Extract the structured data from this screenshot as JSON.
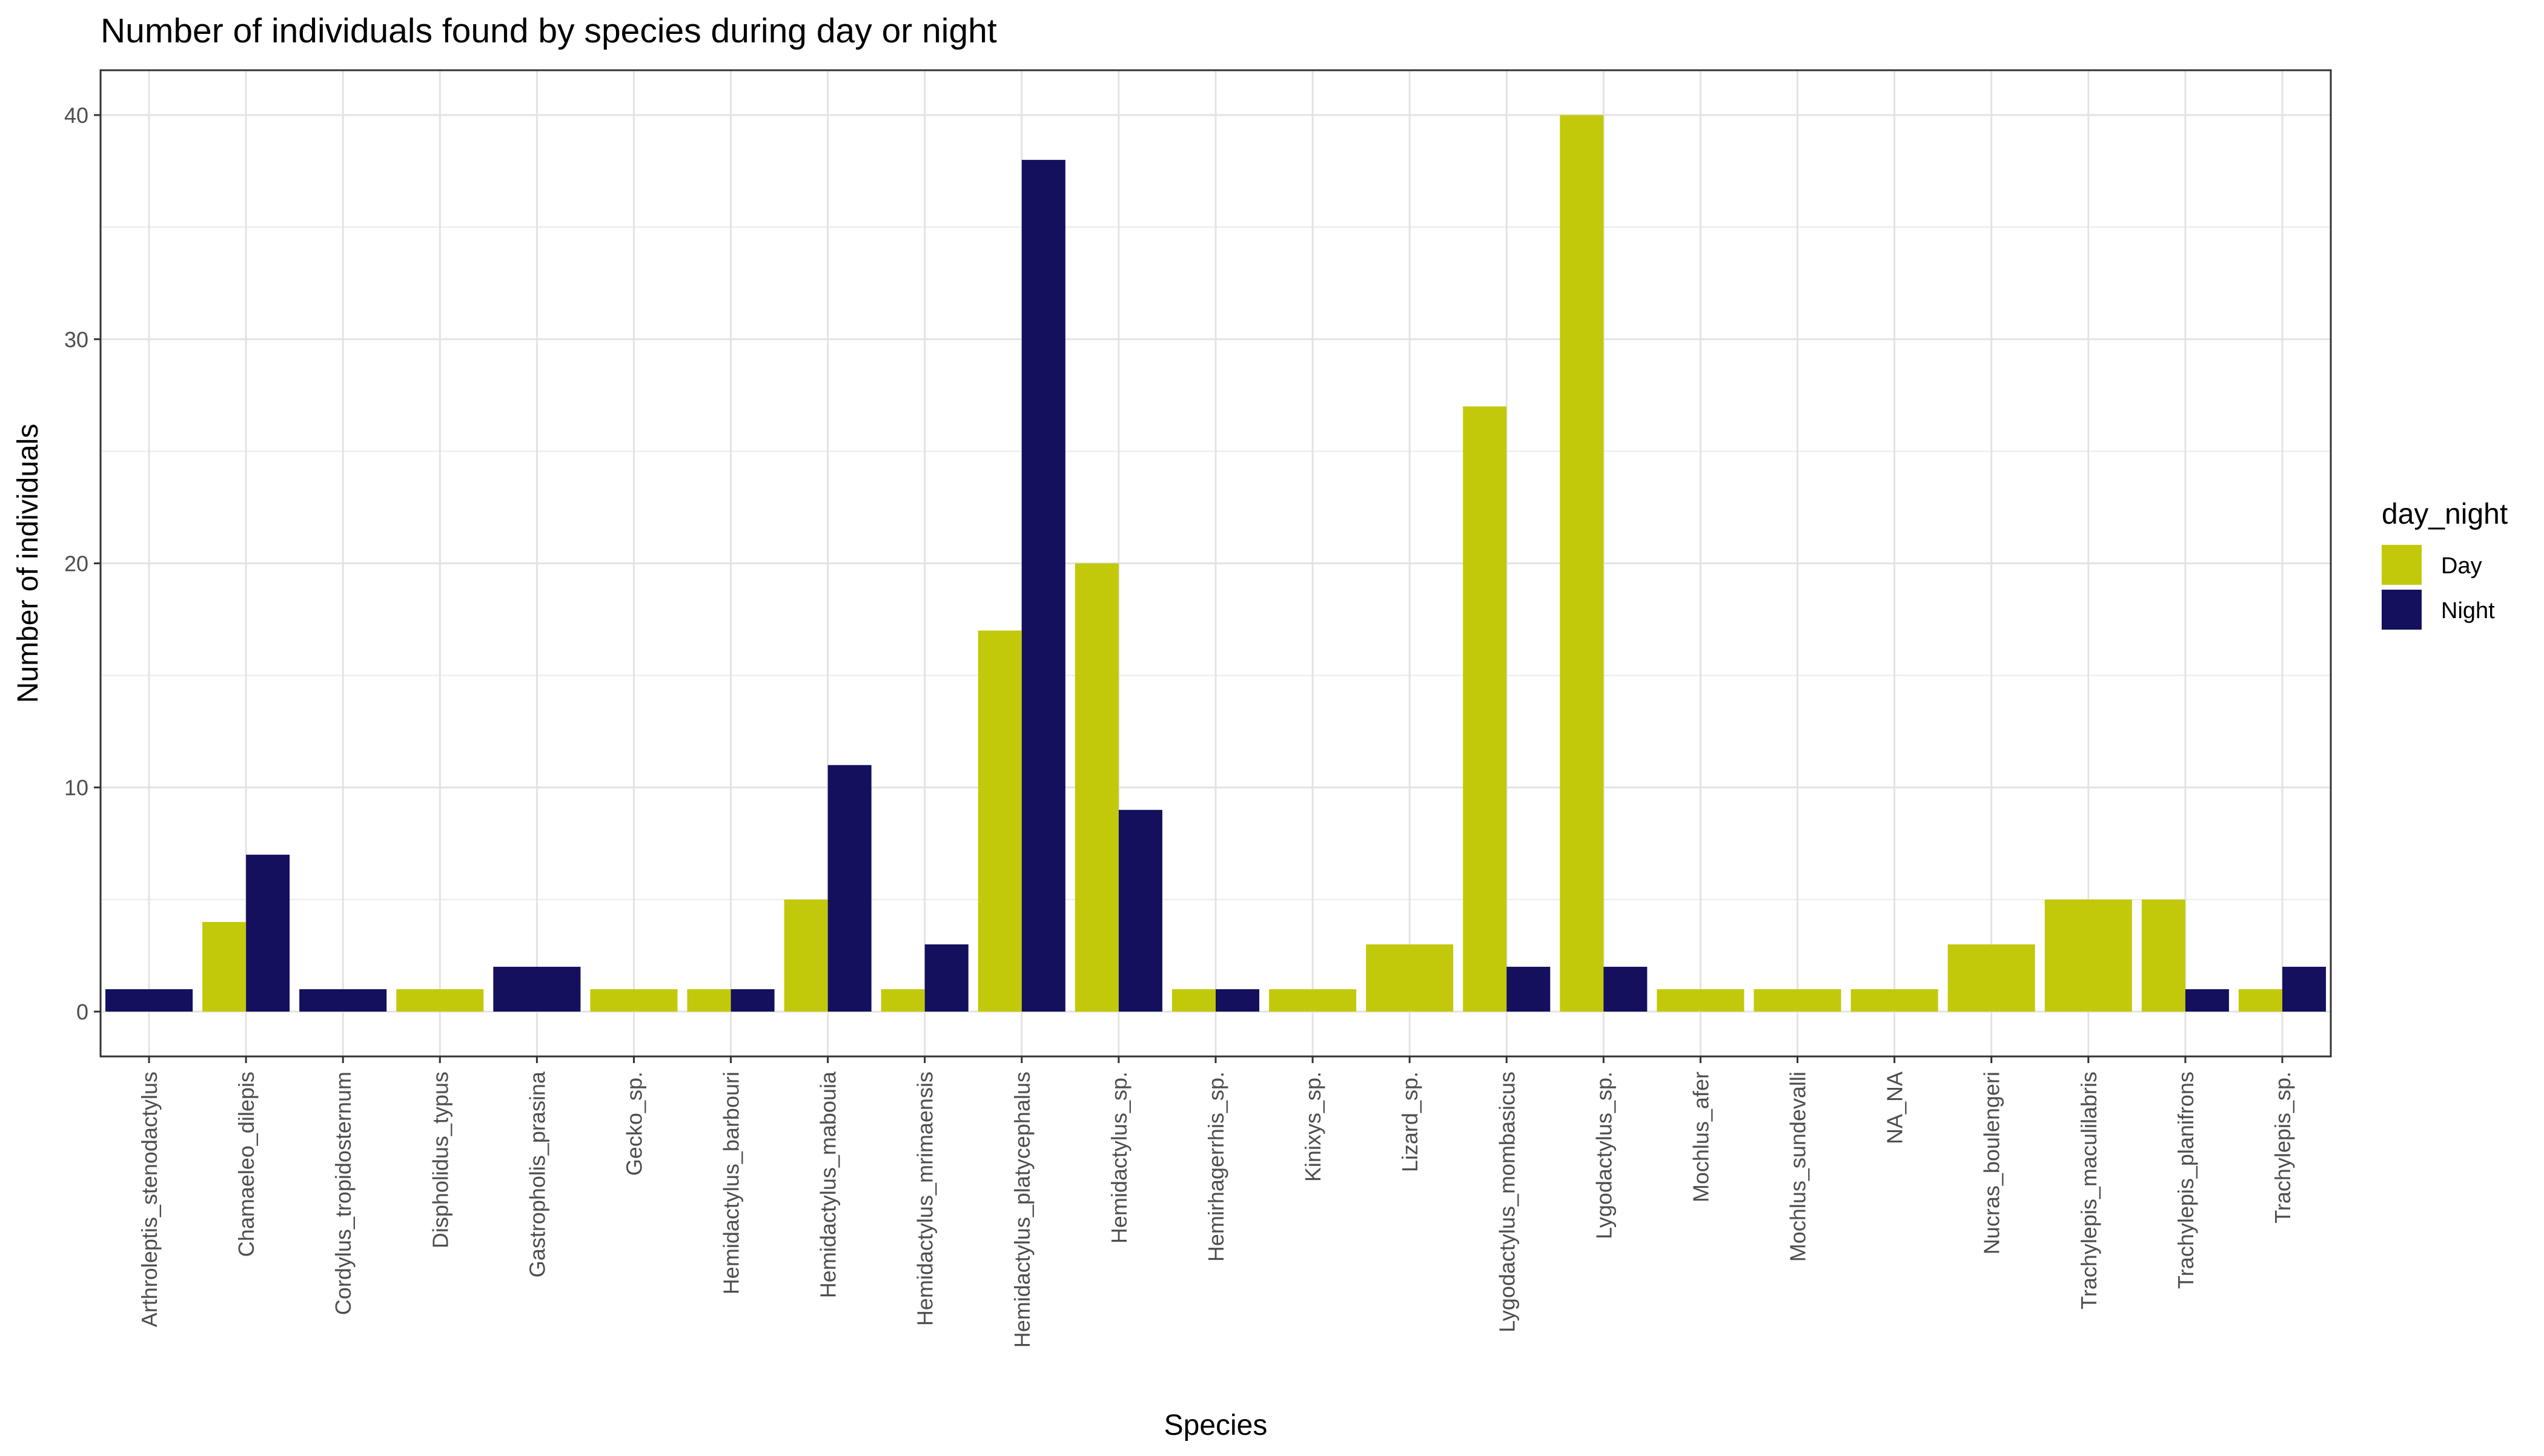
{
  "chart_data": {
    "type": "bar",
    "title": "Number of individuals found by species during day or night",
    "xlabel": "Species",
    "ylabel": "Number of individuals",
    "ylim": [
      -2,
      42
    ],
    "yticks": [
      0,
      10,
      20,
      30,
      40
    ],
    "grid": true,
    "legend": {
      "title": "day_night",
      "placement": "right",
      "entries": [
        "Day",
        "Night"
      ]
    },
    "colors": {
      "Day": "#C2C90A",
      "Night": "#14105E"
    },
    "categories": [
      "Arthroleptis_stenodactylus",
      "Chamaeleo_dilepis",
      "Cordylus_tropidosternum",
      "Dispholidus_typus",
      "Gastropholis_prasina",
      "Gecko_sp.",
      "Hemidactylus_barbouri",
      "Hemidactylus_mabouia",
      "Hemidactylus_mrimaensis",
      "Hemidactylus_platycephalus",
      "Hemidactylus_sp.",
      "Hemirhagerrhis_sp.",
      "Kinixys_sp.",
      "Lizard_sp.",
      "Lygodactylus_mombasicus",
      "Lygodactylus_sp.",
      "Mochlus_afer",
      "Mochlus_sundevalli",
      "NA_NA",
      "Nucras_boulengeri",
      "Trachylepis_maculilabris",
      "Trachylepis_planifrons",
      "Trachylepis_sp."
    ],
    "series": [
      {
        "name": "Day",
        "values": [
          null,
          4,
          null,
          1,
          null,
          1,
          1,
          5,
          1,
          17,
          20,
          1,
          1,
          3,
          27,
          40,
          1,
          1,
          1,
          3,
          5,
          5,
          1
        ]
      },
      {
        "name": "Night",
        "values": [
          1,
          7,
          1,
          null,
          2,
          null,
          1,
          11,
          3,
          38,
          9,
          1,
          null,
          null,
          2,
          2,
          null,
          null,
          null,
          null,
          null,
          1,
          2
        ]
      }
    ]
  }
}
